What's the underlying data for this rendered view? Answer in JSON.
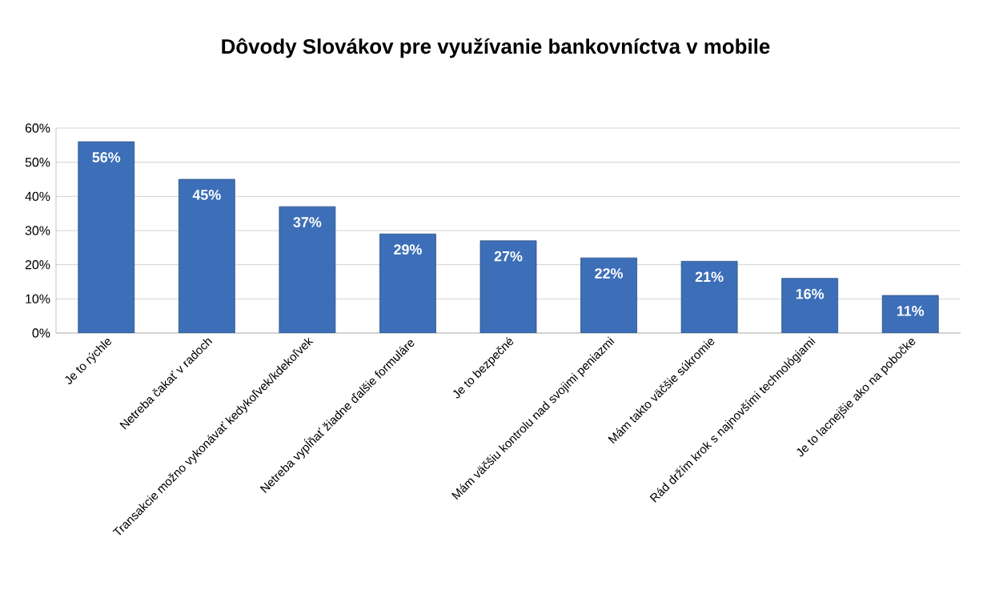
{
  "chart_data": {
    "type": "bar",
    "title": "Dôvody Slovákov pre využívanie bankovníctva v mobile",
    "categories": [
      "Je to rýchle",
      "Netreba čakať v radoch",
      "Transakcie možno vykonávať kedykoľvek/kdekoľvek",
      "Netreba vypĺňať žiadne ďalšie formuláre",
      "Je to bezpečné",
      "Mám väčšiu kontrolu nad svojimi peniazmi",
      "Mám takto väčšie súkromie",
      "Rád držím krok s najnovšími technológiami",
      "Je to lacnejšie ako na pobočke"
    ],
    "values": [
      56,
      45,
      37,
      29,
      27,
      22,
      21,
      16,
      11
    ],
    "value_labels": [
      "56%",
      "45%",
      "37%",
      "29%",
      "27%",
      "22%",
      "21%",
      "16%",
      "11%"
    ],
    "color": "#3d6fb8",
    "ylim": [
      0,
      60
    ],
    "yticks": [
      {
        "value": 0,
        "label": "0%"
      },
      {
        "value": 10,
        "label": "10%"
      },
      {
        "value": 20,
        "label": "20%"
      },
      {
        "value": 30,
        "label": "30%"
      },
      {
        "value": 40,
        "label": "40%"
      },
      {
        "value": 50,
        "label": "50%"
      },
      {
        "value": 60,
        "label": "60%"
      }
    ],
    "grid": "y"
  }
}
